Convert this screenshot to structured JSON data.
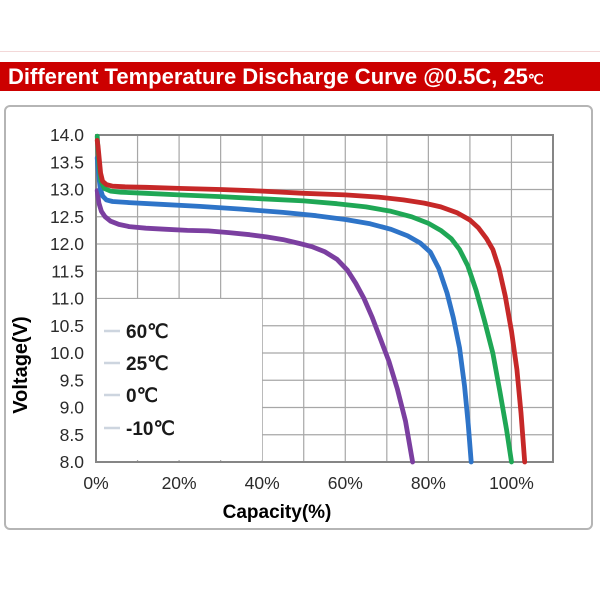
{
  "banner": {
    "title_main": "Different Temperature Discharge Curve @0.5C, 25",
    "title_degree": "℃",
    "bg_color": "#cc0000",
    "text_color": "#ffffff"
  },
  "chart_data": {
    "type": "line",
    "xlabel": "Capacity(%)",
    "ylabel": "Voltage(V)",
    "xlim": [
      0,
      110
    ],
    "ylim": [
      8,
      14
    ],
    "grid": true,
    "x_grid_step": 10,
    "y_grid_step": 0.5,
    "x_ticks": {
      "values": [
        0,
        20,
        40,
        60,
        80,
        100
      ],
      "labels": [
        "0%",
        "20%",
        "40%",
        "60%",
        "80%",
        "100%"
      ]
    },
    "y_ticks": {
      "values": [
        14,
        13.5,
        13,
        12.5,
        12,
        11.5,
        11,
        10.5,
        10,
        9.5,
        9,
        8.5,
        8
      ],
      "labels": [
        "14.0",
        "13.5",
        "13.0",
        "12.5",
        "12.0",
        "11.5",
        "11.0",
        "10.5",
        "10.0",
        "9.5",
        "9.0",
        "8.5",
        "8.0"
      ]
    },
    "legend": {
      "position": "inside-lower-left",
      "marker_color": "#cdd5df",
      "text_color": "#1a1a1a"
    },
    "grid_color": "#a7a7a7",
    "frame_color": "#868686",
    "tick_label_color": "#2b2b2b",
    "series": [
      {
        "name": "60℃",
        "color": "#c62828",
        "points": [
          [
            0.3,
            13.9
          ],
          [
            0.5,
            13.78
          ],
          [
            0.8,
            13.55
          ],
          [
            1.1,
            13.3
          ],
          [
            1.6,
            13.15
          ],
          [
            2.5,
            13.09
          ],
          [
            4,
            13.06
          ],
          [
            7,
            13.05
          ],
          [
            12,
            13.04
          ],
          [
            20,
            13.02
          ],
          [
            30,
            13.0
          ],
          [
            40,
            12.97
          ],
          [
            50,
            12.93
          ],
          [
            60,
            12.9
          ],
          [
            68,
            12.86
          ],
          [
            74,
            12.81
          ],
          [
            79,
            12.75
          ],
          [
            83,
            12.68
          ],
          [
            87,
            12.57
          ],
          [
            90,
            12.44
          ],
          [
            92,
            12.3
          ],
          [
            94,
            12.1
          ],
          [
            95.5,
            11.9
          ],
          [
            97,
            11.55
          ],
          [
            98.5,
            11.05
          ],
          [
            100,
            10.4
          ],
          [
            101.3,
            9.7
          ],
          [
            102.3,
            8.9
          ],
          [
            103.2,
            8.0
          ]
        ]
      },
      {
        "name": "25℃",
        "color": "#1fa755",
        "points": [
          [
            0.3,
            13.98
          ],
          [
            0.5,
            13.7
          ],
          [
            0.8,
            13.4
          ],
          [
            1.2,
            13.15
          ],
          [
            2,
            13.02
          ],
          [
            3.5,
            12.97
          ],
          [
            6,
            12.95
          ],
          [
            12,
            12.93
          ],
          [
            20,
            12.9
          ],
          [
            30,
            12.87
          ],
          [
            40,
            12.83
          ],
          [
            50,
            12.79
          ],
          [
            58,
            12.74
          ],
          [
            65,
            12.68
          ],
          [
            71,
            12.6
          ],
          [
            76,
            12.5
          ],
          [
            80,
            12.38
          ],
          [
            83,
            12.25
          ],
          [
            85.5,
            12.1
          ],
          [
            87.5,
            11.9
          ],
          [
            89.5,
            11.6
          ],
          [
            91.5,
            11.15
          ],
          [
            93.5,
            10.6
          ],
          [
            95.5,
            10.0
          ],
          [
            97.2,
            9.3
          ],
          [
            98.8,
            8.6
          ],
          [
            100,
            8.0
          ]
        ]
      },
      {
        "name": "0℃",
        "color": "#2e74c8",
        "points": [
          [
            0.3,
            13.58
          ],
          [
            0.6,
            13.3
          ],
          [
            1,
            13.02
          ],
          [
            1.6,
            12.88
          ],
          [
            2.5,
            12.81
          ],
          [
            4,
            12.78
          ],
          [
            8,
            12.76
          ],
          [
            15,
            12.73
          ],
          [
            25,
            12.69
          ],
          [
            35,
            12.64
          ],
          [
            45,
            12.58
          ],
          [
            53,
            12.52
          ],
          [
            60,
            12.45
          ],
          [
            66,
            12.37
          ],
          [
            71,
            12.27
          ],
          [
            75,
            12.15
          ],
          [
            78,
            12.02
          ],
          [
            80.5,
            11.85
          ],
          [
            82.5,
            11.55
          ],
          [
            84.5,
            11.1
          ],
          [
            86,
            10.65
          ],
          [
            87.5,
            10.1
          ],
          [
            88.7,
            9.4
          ],
          [
            89.6,
            8.7
          ],
          [
            90.3,
            8.0
          ]
        ]
      },
      {
        "name": "-10℃",
        "color": "#7b3fa0",
        "points": [
          [
            0.3,
            12.98
          ],
          [
            0.7,
            12.75
          ],
          [
            1.3,
            12.6
          ],
          [
            2.2,
            12.5
          ],
          [
            3.5,
            12.42
          ],
          [
            5.5,
            12.36
          ],
          [
            8,
            12.32
          ],
          [
            12,
            12.29
          ],
          [
            17,
            12.27
          ],
          [
            22,
            12.25
          ],
          [
            27,
            12.24
          ],
          [
            32,
            12.21
          ],
          [
            37,
            12.17
          ],
          [
            41,
            12.13
          ],
          [
            45,
            12.08
          ],
          [
            49,
            12.01
          ],
          [
            52,
            11.95
          ],
          [
            55,
            11.86
          ],
          [
            58,
            11.72
          ],
          [
            60.5,
            11.52
          ],
          [
            62.5,
            11.28
          ],
          [
            64.5,
            11.0
          ],
          [
            66.5,
            10.65
          ],
          [
            68.5,
            10.25
          ],
          [
            70.5,
            9.85
          ],
          [
            72.5,
            9.35
          ],
          [
            74.5,
            8.75
          ],
          [
            76.2,
            8.0
          ]
        ]
      }
    ]
  }
}
